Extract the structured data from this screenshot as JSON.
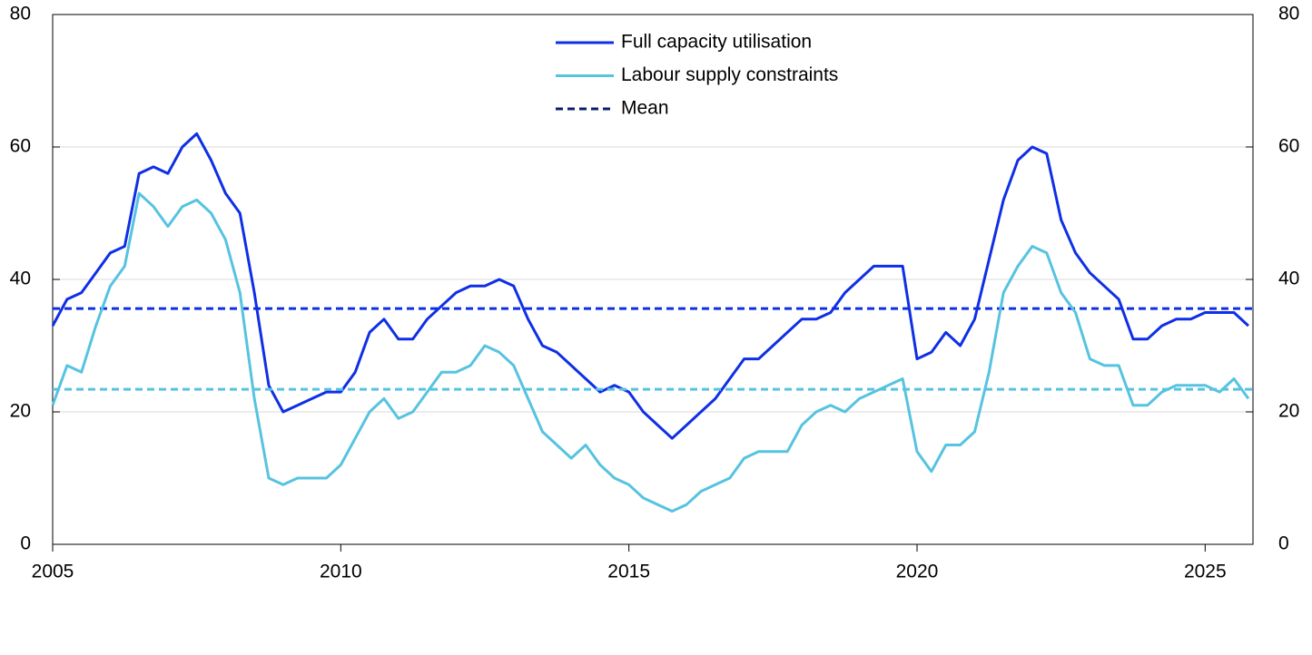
{
  "chart_data": {
    "type": "line",
    "x": [
      2005,
      2005.25,
      2005.5,
      2005.75,
      2006,
      2006.25,
      2006.5,
      2006.75,
      2007,
      2007.25,
      2007.5,
      2007.75,
      2008,
      2008.25,
      2008.5,
      2008.75,
      2009,
      2009.25,
      2009.5,
      2009.75,
      2010,
      2010.25,
      2010.5,
      2010.75,
      2011,
      2011.25,
      2011.5,
      2011.75,
      2012,
      2012.25,
      2012.5,
      2012.75,
      2013,
      2013.25,
      2013.5,
      2013.75,
      2014,
      2014.25,
      2014.5,
      2014.75,
      2015,
      2015.25,
      2015.5,
      2015.75,
      2016,
      2016.25,
      2016.5,
      2016.75,
      2017,
      2017.25,
      2017.5,
      2017.75,
      2018,
      2018.25,
      2018.5,
      2018.75,
      2019,
      2019.25,
      2019.5,
      2019.75,
      2020,
      2020.25,
      2020.5,
      2020.75,
      2021,
      2021.25,
      2021.5,
      2021.75,
      2022,
      2022.25,
      2022.5,
      2022.75,
      2023,
      2023.25,
      2023.5,
      2023.75,
      2024,
      2024.25,
      2024.5,
      2024.75,
      2025,
      2025.25,
      2025.5,
      2025.75
    ],
    "series": [
      {
        "name": "Full capacity utilisation",
        "color": "#0f2fe6",
        "mean": 35.6,
        "values": [
          33,
          37,
          38,
          41,
          44,
          45,
          56,
          57,
          56,
          60,
          62,
          58,
          53,
          50,
          38,
          24,
          20,
          21,
          22,
          23,
          23,
          26,
          32,
          34,
          31,
          31,
          34,
          36,
          38,
          39,
          39,
          40,
          39,
          34,
          30,
          29,
          27,
          25,
          23,
          24,
          23,
          20,
          18,
          16,
          18,
          20,
          22,
          25,
          28,
          28,
          30,
          32,
          34,
          34,
          35,
          38,
          40,
          42,
          42,
          42,
          28,
          29,
          32,
          30,
          34,
          43,
          52,
          58,
          60,
          59,
          49,
          44,
          41,
          39,
          37,
          31,
          31,
          33,
          34,
          34,
          35,
          35,
          35,
          33
        ]
      },
      {
        "name": "Labour supply constraints",
        "color": "#56c3e0",
        "mean": 23.4,
        "values": [
          21,
          27,
          26,
          33,
          39,
          42,
          53,
          51,
          48,
          51,
          52,
          50,
          46,
          38,
          22,
          10,
          9,
          10,
          10,
          10,
          12,
          16,
          20,
          22,
          19,
          20,
          23,
          26,
          26,
          27,
          30,
          29,
          27,
          22,
          17,
          15,
          13,
          15,
          12,
          10,
          9,
          7,
          6,
          5,
          6,
          8,
          9,
          10,
          13,
          14,
          14,
          14,
          18,
          20,
          21,
          20,
          22,
          23,
          24,
          25,
          14,
          11,
          15,
          15,
          17,
          26,
          38,
          42,
          45,
          44,
          38,
          35,
          28,
          27,
          27,
          21,
          21,
          23,
          24,
          24,
          24,
          23,
          25,
          22
        ]
      }
    ],
    "mean_legend": {
      "name": "Mean",
      "color": "#0b1f6e"
    },
    "xlim": [
      2005,
      2025.83
    ],
    "xticks": [
      2005,
      2010,
      2015,
      2020,
      2025
    ],
    "ylim": [
      0,
      80
    ],
    "yticks": [
      0,
      20,
      40,
      60,
      80
    ],
    "y2lim": [
      0,
      80
    ],
    "y2ticks": [
      0,
      20,
      40,
      60,
      80
    ],
    "grid": true
  }
}
